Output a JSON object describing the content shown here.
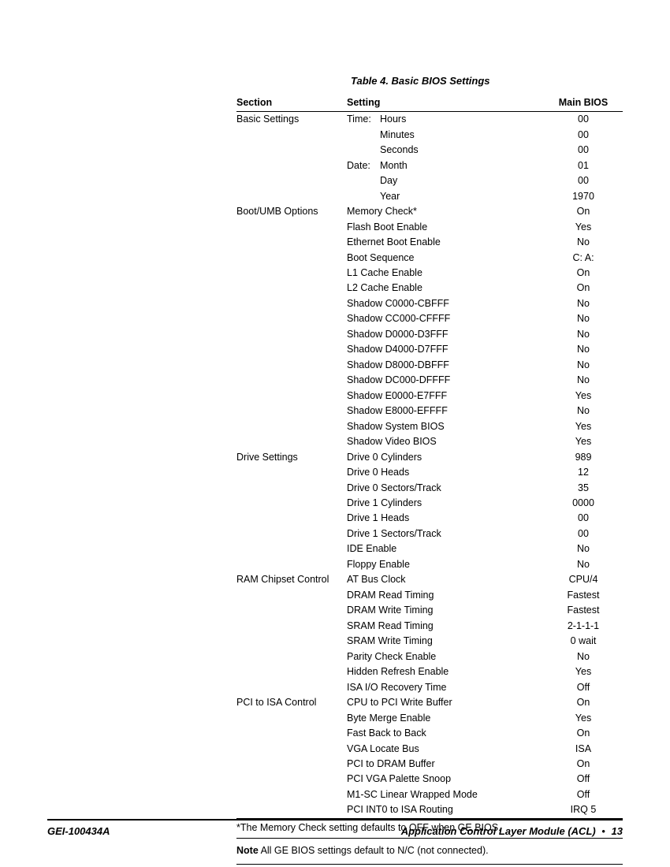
{
  "title": "Table 4.  Basic BIOS Settings",
  "columns": [
    "Section",
    "Setting",
    "Main BIOS"
  ],
  "rows": [
    {
      "section": "Basic Settings",
      "prefix": "Time:",
      "setting": "Hours",
      "value": "00"
    },
    {
      "section": "",
      "prefix": "",
      "setting": "Minutes",
      "value": "00"
    },
    {
      "section": "",
      "prefix": "",
      "setting": "Seconds",
      "value": "00"
    },
    {
      "section": "",
      "prefix": "Date:",
      "setting": "Month",
      "value": "01"
    },
    {
      "section": "",
      "prefix": "",
      "setting": "Day",
      "value": "00"
    },
    {
      "section": "",
      "prefix": "",
      "setting": "Year",
      "value": "1970"
    },
    {
      "section": "Boot/UMB Options",
      "setting": "Memory Check*",
      "value": "On"
    },
    {
      "section": "",
      "setting": "Flash Boot Enable",
      "value": "Yes"
    },
    {
      "section": "",
      "setting": "Ethernet Boot Enable",
      "value": "No"
    },
    {
      "section": "",
      "setting": "Boot Sequence",
      "value": "C: A:"
    },
    {
      "section": "",
      "setting": "L1 Cache Enable",
      "value": "On"
    },
    {
      "section": "",
      "setting": "L2 Cache Enable",
      "value": "On"
    },
    {
      "section": "",
      "setting": "Shadow C0000-CBFFF",
      "value": "No"
    },
    {
      "section": "",
      "setting": "Shadow CC000-CFFFF",
      "value": "No"
    },
    {
      "section": "",
      "setting": "Shadow D0000-D3FFF",
      "value": "No"
    },
    {
      "section": "",
      "setting": "Shadow D4000-D7FFF",
      "value": "No"
    },
    {
      "section": "",
      "setting": "Shadow D8000-DBFFF",
      "value": "No"
    },
    {
      "section": "",
      "setting": "Shadow DC000-DFFFF",
      "value": "No"
    },
    {
      "section": "",
      "setting": "Shadow E0000-E7FFF",
      "value": "Yes"
    },
    {
      "section": "",
      "setting": "Shadow E8000-EFFFF",
      "value": "No"
    },
    {
      "section": "",
      "setting": "Shadow System BIOS",
      "value": "Yes"
    },
    {
      "section": "",
      "setting": "Shadow Video BIOS",
      "value": "Yes"
    },
    {
      "section": "Drive Settings",
      "setting": "Drive 0 Cylinders",
      "value": "989"
    },
    {
      "section": "",
      "setting": "Drive 0 Heads",
      "value": "12"
    },
    {
      "section": "",
      "setting": "Drive 0 Sectors/Track",
      "value": "35"
    },
    {
      "section": "",
      "setting": "Drive 1 Cylinders",
      "value": "0000"
    },
    {
      "section": "",
      "setting": "Drive 1 Heads",
      "value": "00"
    },
    {
      "section": "",
      "setting": "Drive 1 Sectors/Track",
      "value": "00"
    },
    {
      "section": "",
      "setting": "IDE Enable",
      "value": "No"
    },
    {
      "section": "",
      "setting": "Floppy Enable",
      "value": "No"
    },
    {
      "section": "RAM Chipset Control",
      "setting": "AT Bus Clock",
      "value": "CPU/4"
    },
    {
      "section": "",
      "setting": "DRAM Read Timing",
      "value": "Fastest"
    },
    {
      "section": "",
      "setting": "DRAM Write Timing",
      "value": "Fastest"
    },
    {
      "section": "",
      "setting": "SRAM Read Timing",
      "value": "2-1-1-1"
    },
    {
      "section": "",
      "setting": "SRAM Write Timing",
      "value": "0 wait"
    },
    {
      "section": "",
      "setting": "Parity Check Enable",
      "value": "No"
    },
    {
      "section": "",
      "setting": "Hidden Refresh Enable",
      "value": "Yes"
    },
    {
      "section": "",
      "setting": "ISA I/O Recovery Time",
      "value": "Off"
    },
    {
      "section": "PCI to ISA Control",
      "setting": "CPU to PCI Write Buffer",
      "value": "On"
    },
    {
      "section": "",
      "setting": "Byte Merge Enable",
      "value": "Yes"
    },
    {
      "section": "",
      "setting": "Fast Back to Back",
      "value": "On"
    },
    {
      "section": "",
      "setting": "VGA Locate Bus",
      "value": "ISA"
    },
    {
      "section": "",
      "setting": "PCI to DRAM Buffer",
      "value": "On"
    },
    {
      "section": "",
      "setting": "PCI VGA Palette Snoop",
      "value": "Off"
    },
    {
      "section": "",
      "setting": "M1-SC Linear Wrapped Mode",
      "value": "Off"
    },
    {
      "section": "",
      "setting": "PCI INT0 to ISA Routing",
      "value": "IRQ 5",
      "last": true
    }
  ],
  "footnote": "*The Memory Check setting defaults to OFF when GE BIOS.",
  "note_label": "Note",
  "note_text": "  All GE BIOS settings default to N/C (not connected).",
  "footer_left": "GEI-100434A",
  "footer_right_title": "Application Control Layer Module (ACL)",
  "footer_right_page": "13"
}
